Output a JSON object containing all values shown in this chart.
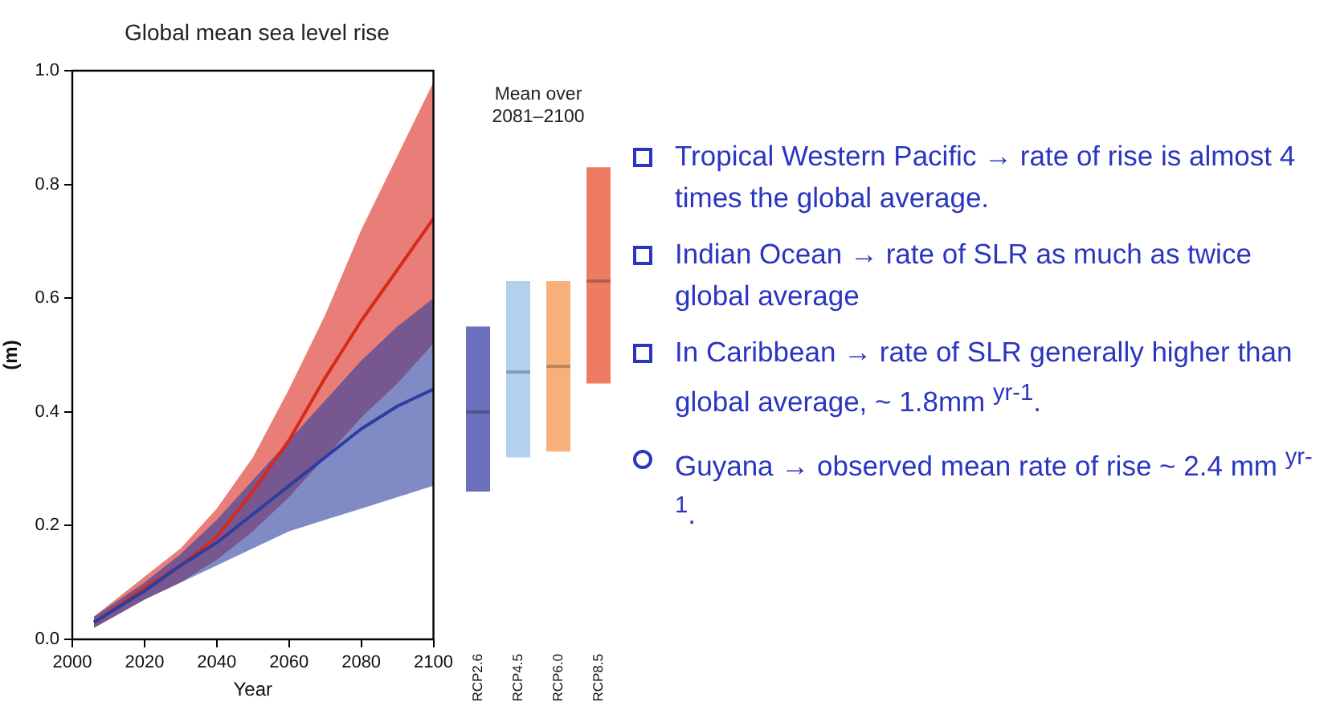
{
  "chart_data": [
    {
      "type": "line",
      "title": "Global mean sea level rise",
      "xlabel": "Year",
      "ylabel": "(m)",
      "xlim": [
        2000,
        2100
      ],
      "xticks": [
        2000,
        2020,
        2040,
        2060,
        2080,
        2100
      ],
      "ylim": [
        0,
        1
      ],
      "yticks": [
        {
          "value": 0,
          "label": "0.0"
        },
        0.2,
        0.4,
        0.6,
        0.8,
        {
          "value": 1,
          "label": "1.0"
        }
      ],
      "grid": false,
      "legend": false,
      "marker": "none",
      "series": [
        {
          "color": "#2c3ea0",
          "x": [
            2006,
            2020,
            2030,
            2040,
            2050,
            2060,
            2070,
            2080,
            2090,
            2100
          ],
          "values": [
            0.03,
            0.085,
            0.13,
            0.17,
            0.22,
            0.27,
            0.32,
            0.37,
            0.41,
            0.44
          ],
          "lower": [
            0.02,
            0.07,
            0.1,
            0.13,
            0.16,
            0.19,
            0.21,
            0.23,
            0.25,
            0.27
          ],
          "upper": [
            0.04,
            0.1,
            0.15,
            0.21,
            0.28,
            0.35,
            0.42,
            0.49,
            0.55,
            0.6
          ]
        },
        {
          "color": "#d8281c",
          "x": [
            2006,
            2020,
            2030,
            2040,
            2050,
            2060,
            2070,
            2080,
            2090,
            2100
          ],
          "values": [
            0.03,
            0.09,
            0.13,
            0.18,
            0.26,
            0.35,
            0.46,
            0.56,
            0.65,
            0.74
          ],
          "lower": [
            0.02,
            0.07,
            0.1,
            0.14,
            0.19,
            0.25,
            0.32,
            0.39,
            0.45,
            0.52
          ],
          "upper": [
            0.04,
            0.11,
            0.16,
            0.23,
            0.32,
            0.44,
            0.57,
            0.72,
            0.85,
            0.98
          ]
        }
      ]
    },
    {
      "type": "box",
      "title": "Mean over 2081–2100",
      "categories": [
        "RCP2.6",
        "RCP4.5",
        "RCP6.0",
        "RCP8.5"
      ],
      "ylim": [
        0,
        1
      ],
      "tick_labels": "x",
      "colors": [
        "#6a70bc",
        "#b3d0ee",
        "#f8b07a",
        "#ee7c62"
      ],
      "boxes": [
        {
          "low": 0.26,
          "q1": 0.26,
          "median": 0.4,
          "q3": 0.55,
          "high": 0.55
        },
        {
          "low": 0.32,
          "q1": 0.32,
          "median": 0.47,
          "q3": 0.63,
          "high": 0.63
        },
        {
          "low": 0.33,
          "q1": 0.33,
          "median": 0.48,
          "q3": 0.63,
          "high": 0.63
        },
        {
          "low": 0.45,
          "q1": 0.45,
          "median": 0.63,
          "q3": 0.83,
          "high": 0.83
        }
      ]
    },
    {
      "type": "other",
      "annotations": [
        "Tropical Western Pacific → rate of rise is almost 4 times the global average.",
        "Indian Ocean → rate of SLR as much as twice global average",
        "In Caribbean → rate of SLR generally higher than global average, ~ 1.8mm $^{yr-1}$.",
        "Guyana → observed mean rate of rise ~ 2.4 mm $^{yr-1}$."
      ]
    }
  ]
}
